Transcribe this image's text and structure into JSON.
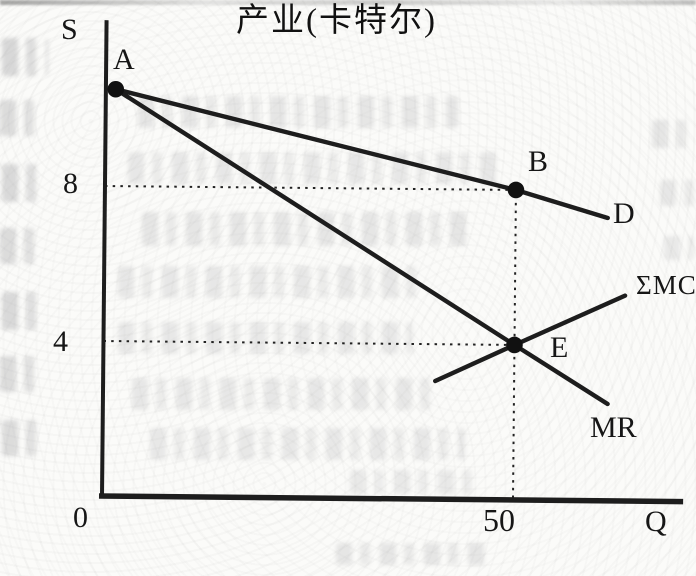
{
  "chart_data": {
    "type": "line",
    "title": "产业(卡特尔)",
    "xlabel": "Q",
    "ylabel": "S",
    "origin_label": "0",
    "xlim": [
      0,
      70.7
    ],
    "ylim": [
      0,
      12.28
    ],
    "grid": false,
    "legend": "none (curve labels at line ends)",
    "x_ticks": [
      {
        "value": 50,
        "label": "50"
      }
    ],
    "y_ticks": [
      {
        "value": 8,
        "label": "8"
      },
      {
        "value": 4,
        "label": "4"
      }
    ],
    "series": [
      {
        "name": "demand",
        "label": "D",
        "points": [
          [
            1.2,
            10.5
          ],
          [
            50,
            8
          ],
          [
            61.2,
            7.3
          ]
        ]
      },
      {
        "name": "marginal-revenue",
        "label": "MR",
        "points": [
          [
            1.2,
            10.5
          ],
          [
            50,
            4
          ],
          [
            61.4,
            2.5
          ]
        ]
      },
      {
        "name": "sum-marginal-cost",
        "label": "ΣMC",
        "points": [
          [
            40.4,
            3.05
          ],
          [
            50,
            4
          ],
          [
            63.4,
            5.3
          ]
        ]
      }
    ],
    "markers": [
      {
        "label": "A",
        "q": 1.2,
        "p": 10.5
      },
      {
        "label": "B",
        "q": 50,
        "p": 8
      },
      {
        "label": "E",
        "q": 50,
        "p": 4
      }
    ],
    "guides": [
      {
        "type": "h",
        "p": 8,
        "from_q": 0,
        "to_q": 49.3
      },
      {
        "type": "h",
        "p": 4,
        "from_q": 0,
        "to_q": 49.3
      },
      {
        "type": "v",
        "q": 50,
        "from_p": 0.05,
        "to_p": 7.85
      }
    ],
    "colors": {
      "ink": "#1d1d1d",
      "dot": "#111111",
      "paper": "#fbfbf9"
    }
  }
}
